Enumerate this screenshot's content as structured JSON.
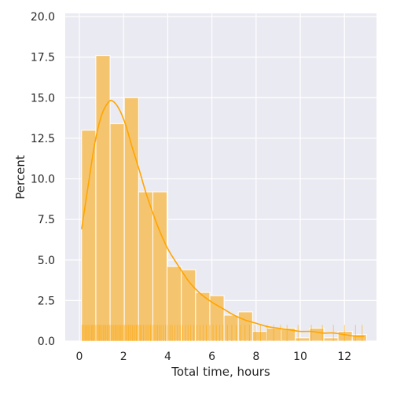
{
  "chart_data": {
    "type": "bar",
    "subtype": "histogram-with-kde-and-rug",
    "title": "",
    "xlabel": "Total time, hours",
    "ylabel": "Percent",
    "xlim": [
      -0.64,
      13.45
    ],
    "ylim": [
      0,
      20.2
    ],
    "xticks": [
      0,
      2,
      4,
      6,
      8,
      10,
      12
    ],
    "xtick_labels": [
      "0",
      "2",
      "4",
      "6",
      "8",
      "10",
      "12"
    ],
    "yticks": [
      0,
      2.5,
      5,
      7.5,
      10,
      12.5,
      15,
      17.5,
      20
    ],
    "ytick_labels": [
      "0.0",
      "2.5",
      "5.0",
      "7.5",
      "10.0",
      "12.5",
      "15.0",
      "17.5",
      "20.0"
    ],
    "grid": true,
    "legend": "none",
    "colors": {
      "bar_fill": "#f5c46e",
      "bar_edge": "#ffffff",
      "kde_line": "#ffa500",
      "rug": "#ffa500",
      "plot_background": "#eaeaf2",
      "grid": "#ffffff",
      "text": "#262626"
    },
    "bin_edges": [
      0.1,
      0.745,
      1.39,
      2.035,
      2.68,
      3.325,
      3.97,
      4.615,
      5.26,
      5.905,
      6.55,
      7.195,
      7.84,
      8.485,
      9.13,
      9.775,
      10.42,
      11.065,
      11.71,
      12.355,
      13.0
    ],
    "values": [
      13.0,
      17.6,
      13.4,
      15.0,
      9.2,
      9.2,
      4.6,
      4.4,
      3.0,
      2.8,
      1.6,
      1.8,
      0.6,
      0.8,
      0.8,
      0.2,
      0.8,
      0.2,
      0.6,
      0.4
    ],
    "kde": {
      "x": [
        0.1,
        0.4,
        0.7,
        1.0,
        1.3,
        1.5,
        1.8,
        2.1,
        2.4,
        2.7,
        3.0,
        3.3,
        3.6,
        4.0,
        4.5,
        5.0,
        5.5,
        6.0,
        6.5,
        7.0,
        7.5,
        8.0,
        8.5,
        9.0,
        9.5,
        10.0,
        10.5,
        11.0,
        11.5,
        12.0,
        12.5,
        12.9
      ],
      "y": [
        6.9,
        9.6,
        12.2,
        13.9,
        14.7,
        14.8,
        14.3,
        13.3,
        11.9,
        10.6,
        9.2,
        8.0,
        6.9,
        5.7,
        4.6,
        3.6,
        2.9,
        2.4,
        2.0,
        1.6,
        1.3,
        1.1,
        0.9,
        0.8,
        0.7,
        0.6,
        0.6,
        0.5,
        0.5,
        0.4,
        0.3,
        0.3
      ]
    },
    "rug": {
      "height": 1.0,
      "x": [
        0.12,
        0.18,
        0.25,
        0.3,
        0.36,
        0.42,
        0.48,
        0.55,
        0.6,
        0.66,
        0.72,
        0.78,
        0.85,
        0.9,
        0.95,
        1.02,
        1.08,
        1.14,
        1.2,
        1.26,
        1.32,
        1.38,
        1.44,
        1.5,
        1.56,
        1.62,
        1.68,
        1.74,
        1.8,
        1.86,
        1.92,
        1.98,
        2.04,
        2.1,
        2.16,
        2.22,
        2.28,
        2.34,
        2.4,
        2.46,
        2.52,
        2.58,
        2.64,
        2.7,
        2.76,
        2.82,
        2.9,
        2.98,
        3.06,
        3.14,
        3.22,
        3.3,
        3.38,
        3.46,
        3.54,
        3.62,
        3.7,
        3.8,
        3.9,
        4.0,
        4.1,
        4.2,
        4.32,
        4.44,
        4.56,
        4.68,
        4.8,
        4.92,
        5.04,
        5.18,
        5.32,
        5.46,
        5.6,
        5.75,
        5.9,
        6.05,
        6.2,
        6.35,
        6.5,
        6.7,
        6.9,
        7.1,
        7.3,
        7.5,
        7.7,
        7.95,
        8.2,
        8.5,
        8.8,
        9.1,
        9.4,
        9.9,
        10.5,
        11.0,
        11.5,
        12.0,
        12.5,
        12.8
      ]
    }
  }
}
